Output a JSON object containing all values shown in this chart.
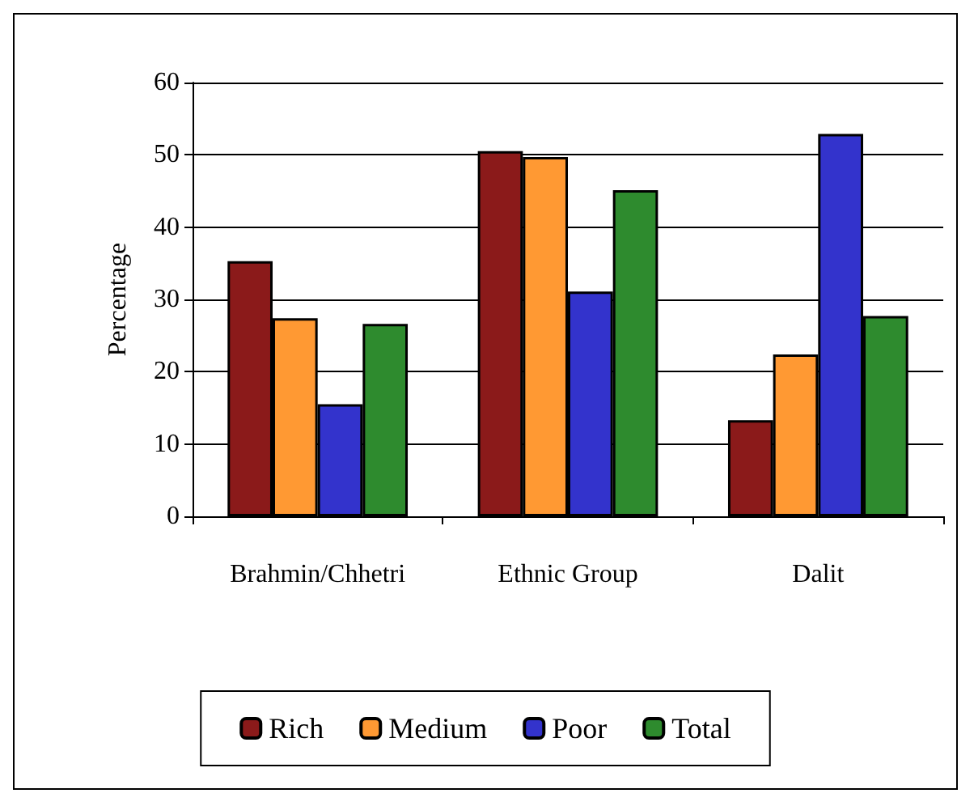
{
  "chart_data": {
    "type": "bar",
    "ylabel": "Percentage",
    "categories": [
      "Brahmin/Chhetri",
      "Ethnic Group",
      "Dalit"
    ],
    "series": [
      {
        "name": "Rich",
        "color": "#8b1a1a",
        "values": [
          35.3,
          50.5,
          13.3
        ]
      },
      {
        "name": "Medium",
        "color": "#ff9933",
        "values": [
          27.4,
          49.7,
          22.4
        ]
      },
      {
        "name": "Poor",
        "color": "#3333cc",
        "values": [
          15.5,
          31.1,
          52.9
        ]
      },
      {
        "name": "Total",
        "color": "#2e8b2e",
        "values": [
          26.6,
          45.1,
          27.7
        ]
      }
    ],
    "ylim": [
      0,
      60
    ],
    "yticks": [
      0,
      10,
      20,
      30,
      40,
      50,
      60
    ],
    "grid": "y",
    "legend": "bottom"
  }
}
